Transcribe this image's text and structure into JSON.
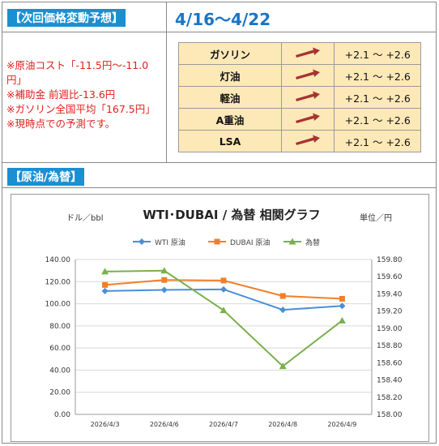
{
  "header": {
    "forecast_label": "【次回価格変動予想】",
    "period": "4/16～4/22"
  },
  "notes": [
    "※原油コスト「-11.5円～-11.0",
    "円」",
    "※補助金 前週比-13.6円",
    "※ガソリン全国平均「167.5円」",
    "※現時点での予測です。"
  ],
  "price_table": {
    "arrow_color": "#a83232",
    "rows": [
      {
        "fuel": "ガソリン",
        "arrow": "arrow-up-right-icon",
        "range": "+2.1 ～ +2.6"
      },
      {
        "fuel": "灯油",
        "arrow": "arrow-up-right-icon",
        "range": "+2.1 ～ +2.6"
      },
      {
        "fuel": "軽油",
        "arrow": "arrow-up-right-icon",
        "range": "+2.1 ～ +2.6"
      },
      {
        "fuel": "A重油",
        "arrow": "arrow-up-right-icon",
        "range": "+2.1 ～ +2.6"
      },
      {
        "fuel": "LSA",
        "arrow": "arrow-up-right-icon",
        "range": "+2.1 ～ +2.6"
      }
    ]
  },
  "section2": {
    "label": "【原油/為替】"
  },
  "chart_data": {
    "type": "line",
    "title": "WTI･DUBAI / 為替 相関グラフ",
    "left_unit": "ドル／bbl",
    "right_unit": "単位／円",
    "categories": [
      "2026/4/3",
      "2026/4/6",
      "2026/4/7",
      "2026/4/8",
      "2026/4/9"
    ],
    "y_left": {
      "min": 0,
      "max": 140,
      "ticks": [
        "0.00",
        "20.00",
        "40.00",
        "60.00",
        "80.00",
        "100.00",
        "120.00",
        "140.00"
      ]
    },
    "y_right": {
      "min": 158.0,
      "max": 159.8,
      "ticks": [
        "158.00",
        "158.20",
        "158.40",
        "158.60",
        "158.80",
        "159.00",
        "159.20",
        "159.40",
        "159.60",
        "159.80"
      ]
    },
    "legend_position": "top",
    "series": [
      {
        "name": "WTI 原油",
        "axis": "left",
        "color": "#4a8fd6",
        "marker": "diamond",
        "values": [
          111.5,
          112.5,
          113.0,
          94.5,
          98.0
        ]
      },
      {
        "name": "DUBAI 原油",
        "axis": "left",
        "color": "#f07f2a",
        "marker": "square",
        "values": [
          117.0,
          121.5,
          121.0,
          107.0,
          104.5
        ]
      },
      {
        "name": "為替",
        "axis": "right",
        "color": "#79b04a",
        "marker": "triangle",
        "values": [
          159.66,
          159.67,
          159.21,
          158.56,
          159.09
        ]
      }
    ]
  }
}
